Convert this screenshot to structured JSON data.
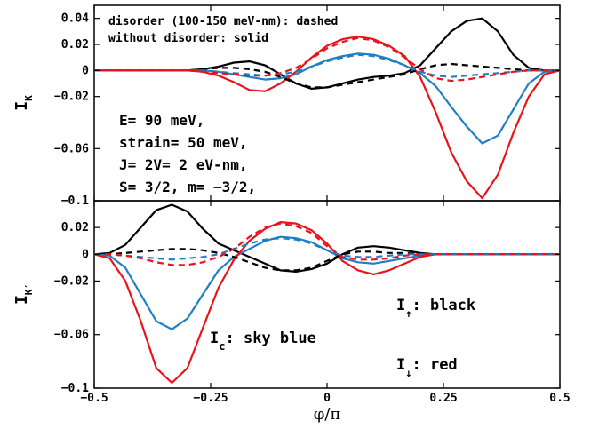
{
  "colors": {
    "up": "#000000",
    "charge": "#1f7fc4",
    "down": "#e8141c"
  },
  "chart_data": {
    "type": "line",
    "xlabel": "φ/π",
    "x_ticks": [
      "−0.5",
      "−0.25",
      "0",
      "0.25",
      "0.5"
    ],
    "x_tick_values": [
      -0.5,
      -0.25,
      0,
      0.25,
      0.5
    ],
    "xlim": [
      -0.5,
      0.5
    ],
    "x": [
      -0.5,
      -0.4667,
      -0.4333,
      -0.4,
      -0.3667,
      -0.3333,
      -0.3,
      -0.2667,
      -0.2333,
      -0.2,
      -0.1667,
      -0.1333,
      -0.1,
      -0.0667,
      -0.0333,
      0.0,
      0.0333,
      0.0667,
      0.1,
      0.1333,
      0.1667,
      0.2,
      0.2333,
      0.2667,
      0.3,
      0.3333,
      0.3667,
      0.4,
      0.4333,
      0.4667,
      0.5
    ],
    "panels": [
      {
        "id": "top",
        "ylabel": "I",
        "ylabel_sub": "K",
        "ylim": [
          -0.1,
          0.05
        ],
        "y_ticks": [
          "0.04",
          "0.02",
          "0",
          "−0.02",
          "−0.06",
          "−0.1"
        ],
        "y_tick_values": [
          0.04,
          0.02,
          0,
          -0.02,
          -0.06,
          -0.1
        ],
        "annotations": [
          "disorder (100-150 meV-nm): dashed",
          "without disorder: solid",
          "E= 90 meV,",
          "strain= 50 meV,",
          "J= 2V= 2 eV-nm,",
          "S= 3/2, m= −3/2,"
        ],
        "series": [
          {
            "color_key": "up",
            "dashed": false,
            "values": [
              0,
              0,
              0,
              0,
              0,
              0,
              0,
              0.001,
              0.003,
              0.006,
              0.007,
              0.004,
              -0.003,
              -0.01,
              -0.014,
              -0.013,
              -0.01,
              -0.007,
              -0.005,
              -0.004,
              -0.002,
              0.004,
              0.017,
              0.03,
              0.038,
              0.04,
              0.03,
              0.012,
              0.002,
              0,
              0
            ]
          },
          {
            "color_key": "charge",
            "dashed": false,
            "values": [
              0,
              0,
              0,
              0,
              0,
              0,
              0,
              0,
              -0.001,
              -0.003,
              -0.005,
              -0.007,
              -0.006,
              -0.003,
              0.003,
              0.008,
              0.011,
              0.013,
              0.012,
              0.009,
              0.004,
              -0.002,
              -0.012,
              -0.028,
              -0.043,
              -0.056,
              -0.05,
              -0.03,
              -0.01,
              -0.001,
              0
            ]
          },
          {
            "color_key": "down",
            "dashed": false,
            "values": [
              0,
              0,
              0,
              0,
              0,
              0,
              0,
              -0.001,
              -0.004,
              -0.009,
              -0.015,
              -0.016,
              -0.01,
              -0.001,
              0.01,
              0.019,
              0.024,
              0.026,
              0.024,
              0.019,
              0.011,
              -0.005,
              -0.032,
              -0.063,
              -0.085,
              -0.098,
              -0.08,
              -0.048,
              -0.02,
              -0.003,
              0
            ]
          },
          {
            "color_key": "up",
            "dashed": true,
            "values": [
              0,
              0,
              0,
              0,
              0,
              0,
              0,
              0.001,
              0.002,
              0.002,
              0.001,
              -0.001,
              -0.005,
              -0.01,
              -0.013,
              -0.013,
              -0.011,
              -0.009,
              -0.007,
              -0.005,
              -0.003,
              0.001,
              0.004,
              0.005,
              0.004,
              0.003,
              0.002,
              0.001,
              0,
              0,
              0
            ]
          },
          {
            "color_key": "charge",
            "dashed": true,
            "values": [
              0,
              0,
              0,
              0,
              0,
              0,
              0,
              0,
              -0.001,
              -0.002,
              -0.003,
              -0.004,
              -0.003,
              -0.001,
              0.003,
              0.007,
              0.01,
              0.012,
              0.011,
              0.008,
              0.004,
              -0.001,
              -0.004,
              -0.005,
              -0.004,
              -0.003,
              -0.002,
              -0.001,
              0,
              0,
              0
            ]
          },
          {
            "color_key": "down",
            "dashed": true,
            "values": [
              0,
              0,
              0,
              0,
              0,
              0,
              0,
              -0.001,
              -0.002,
              -0.003,
              -0.004,
              -0.004,
              -0.002,
              0.002,
              0.009,
              0.017,
              0.022,
              0.025,
              0.023,
              0.018,
              0.01,
              0.001,
              -0.006,
              -0.008,
              -0.007,
              -0.005,
              -0.003,
              -0.001,
              0,
              0,
              0
            ]
          }
        ]
      },
      {
        "id": "bottom",
        "ylabel": "I",
        "ylabel_sub": "K′",
        "ylim": [
          -0.1,
          0.04
        ],
        "y_ticks": [
          "0.02",
          "0",
          "−0.02",
          "−0.06",
          "−0.1"
        ],
        "y_tick_values": [
          0.02,
          0,
          -0.02,
          -0.06,
          -0.1
        ],
        "annotations": [
          "I",
          "↑",
          ": black",
          "I",
          "c",
          ": sky blue",
          "I",
          "↓",
          ": red"
        ],
        "series": [
          {
            "color_key": "up",
            "dashed": false,
            "values": [
              0,
              0.001,
              0.007,
              0.02,
              0.033,
              0.037,
              0.032,
              0.019,
              0.008,
              0.003,
              -0.002,
              -0.007,
              -0.012,
              -0.013,
              -0.011,
              -0.007,
              0.0,
              0.005,
              0.006,
              0.005,
              0.003,
              0.001,
              0,
              0,
              0,
              0,
              0,
              0,
              0,
              0,
              0
            ]
          },
          {
            "color_key": "charge",
            "dashed": false,
            "values": [
              0,
              -0.001,
              -0.01,
              -0.03,
              -0.05,
              -0.056,
              -0.048,
              -0.03,
              -0.012,
              -0.002,
              0.004,
              0.01,
              0.013,
              0.012,
              0.009,
              0.003,
              -0.003,
              -0.006,
              -0.007,
              -0.005,
              -0.003,
              -0.001,
              0,
              0,
              0,
              0,
              0,
              0,
              0,
              0,
              0
            ]
          },
          {
            "color_key": "down",
            "dashed": false,
            "values": [
              0,
              -0.003,
              -0.02,
              -0.05,
              -0.085,
              -0.096,
              -0.085,
              -0.055,
              -0.025,
              -0.004,
              0.01,
              0.019,
              0.024,
              0.023,
              0.018,
              0.008,
              -0.005,
              -0.012,
              -0.015,
              -0.012,
              -0.007,
              -0.002,
              0,
              0,
              0,
              0,
              0,
              0,
              0,
              0,
              0
            ]
          },
          {
            "color_key": "up",
            "dashed": true,
            "values": [
              0,
              0,
              0.001,
              0.002,
              0.003,
              0.004,
              0.004,
              0.003,
              0.001,
              -0.002,
              -0.006,
              -0.01,
              -0.012,
              -0.012,
              -0.01,
              -0.005,
              0.0,
              0.002,
              0.002,
              0.001,
              0.001,
              0,
              0,
              0,
              0,
              0,
              0,
              0,
              0,
              0,
              0
            ]
          },
          {
            "color_key": "charge",
            "dashed": true,
            "values": [
              0,
              0,
              -0.001,
              -0.002,
              -0.003,
              -0.004,
              -0.003,
              -0.002,
              0.0,
              0.004,
              0.008,
              0.011,
              0.012,
              0.011,
              0.008,
              0.003,
              -0.001,
              -0.002,
              -0.002,
              -0.001,
              0,
              0,
              0,
              0,
              0,
              0,
              0,
              0,
              0,
              0,
              0
            ]
          },
          {
            "color_key": "down",
            "dashed": true,
            "values": [
              0,
              0,
              -0.001,
              -0.003,
              -0.006,
              -0.008,
              -0.008,
              -0.006,
              -0.002,
              0.004,
              0.013,
              0.02,
              0.023,
              0.021,
              0.016,
              0.006,
              -0.002,
              -0.004,
              -0.004,
              -0.003,
              -0.001,
              0,
              0,
              0,
              0,
              0,
              0,
              0,
              0,
              0,
              0
            ]
          }
        ]
      }
    ]
  }
}
